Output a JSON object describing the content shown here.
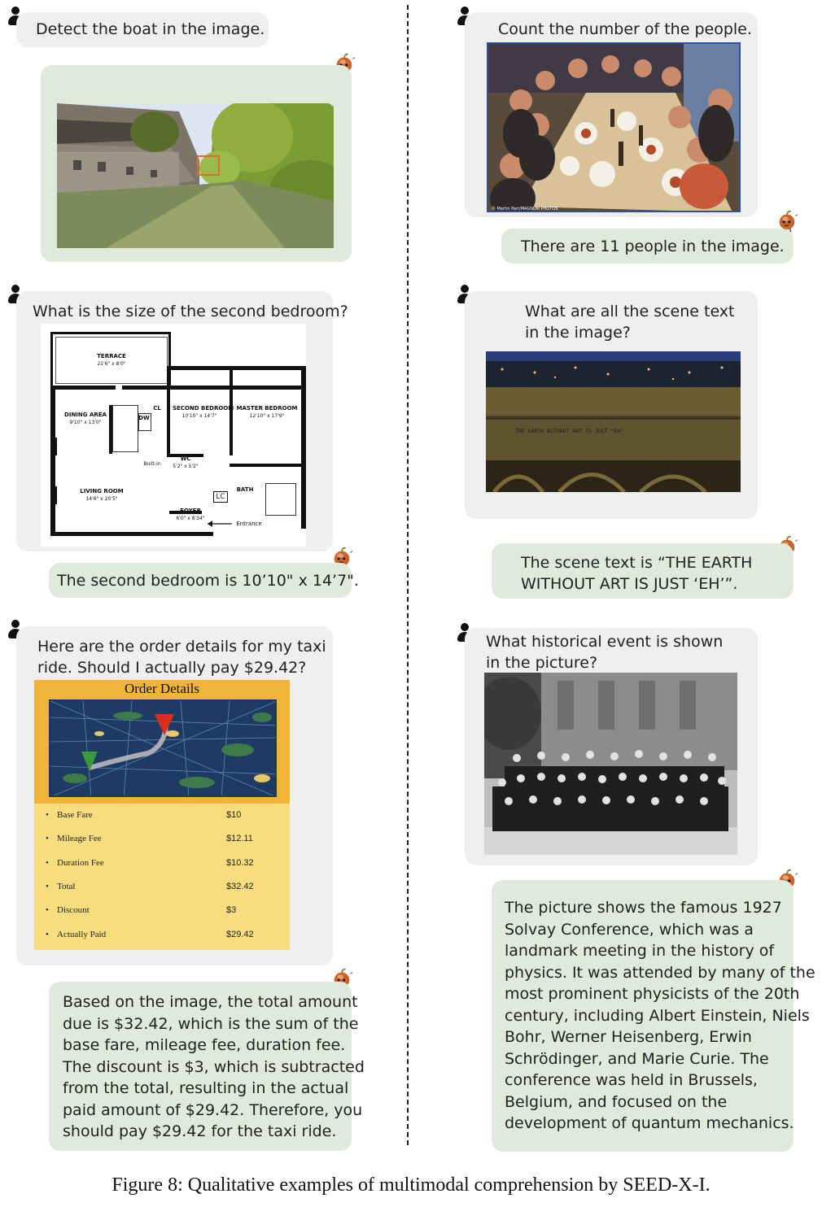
{
  "panels": {
    "boat": {
      "question": "Detect the boat in the image."
    },
    "count": {
      "question": "Count the number of the people.",
      "answer": "There are 11 people in the image.",
      "credit": "© Martin Parr/MAGNUM PHOTOS"
    },
    "bedroom": {
      "question": "What is the size of the second bedroom?",
      "answer": "The second bedroom is 10’10\" x 14’7\"."
    },
    "scene": {
      "question_lines": [
        "What are all the scene text",
        "in the image?"
      ],
      "answer_lines": [
        "The scene text is “THE EARTH",
        "WITHOUT ART IS JUST ‘EH’”."
      ],
      "sign_text": "THE EARTH   WITHOUT   ART   IS   JUST   \"EH\""
    },
    "taxi": {
      "question_lines": [
        "Here are the order details for my taxi",
        "ride. Should I actually pay $29.42?"
      ],
      "answer_lines": [
        "Based on the image, the total amount",
        "due is $32.42, which is the sum of the",
        "base fare, mileage fee, duration fee.",
        "The discount is $3, which is subtracted",
        "from the total, resulting in the actual",
        "paid amount of $29.42. Therefore, you",
        "should pay $29.42 for the taxi ride."
      ]
    },
    "history": {
      "question_lines": [
        "What historical event is shown",
        "in the picture?"
      ],
      "answer_lines": [
        "The picture shows the famous 1927",
        "Solvay Conference, which was a",
        "landmark meeting in the history of",
        "physics. It was attended by many of the",
        "most prominent physicists of the 20th",
        "century, including Albert Einstein, Niels",
        "Bohr, Werner Heisenberg, Erwin",
        "Schrödinger, and Marie Curie. The",
        "conference was held in Brussels,",
        "Belgium, and focused on the",
        "development of quantum mechanics."
      ]
    }
  },
  "floorplan": {
    "terrace": "TERRACE",
    "terrace_dim": "21'6\" x 8'0\"",
    "second_bedroom": "SECOND BEDROOM",
    "second_bedroom_dim": "10'10\" x 14'7\"",
    "master_bedroom": "MASTER BEDROOM",
    "master_bedroom_dim": "12'10\" x 17'9\"",
    "dining": "DINING AREA",
    "dining_dim": "9'10\" x 13'0\"",
    "living": "LIVING ROOM",
    "living_dim": "14'6\" x 20'5\"",
    "wc": "WC",
    "wc_dim": "5'2\" x 5'2\"",
    "bath": "BATH",
    "foyer": "FOYER",
    "foyer_dim": "6'0\" x 8'34\"",
    "entrance": "Entrance",
    "builtin": "Built-in",
    "lc": "LC",
    "dw": "DW",
    "cl": "CL",
    "kitchen": "KITCHEN"
  },
  "order": {
    "title": "Order Details",
    "items": [
      {
        "label": "Base Fare",
        "value": "$10"
      },
      {
        "label": "Mileage Fee",
        "value": "$12.11"
      },
      {
        "label": "Duration Fee",
        "value": "$10.32"
      },
      {
        "label": "Total",
        "value": "$32.42"
      },
      {
        "label": "Discount",
        "value": "$3"
      },
      {
        "label": "Actually Paid",
        "value": "$29.42"
      }
    ]
  },
  "caption": "Figure 8: Qualitative examples of multimodal comprehension by SEED-X-I.",
  "colors": {
    "question_bg": "#efefef",
    "answer_bg": "#dfeadb",
    "order_panel": "#f7dd7d",
    "map_border": "#f0b43a"
  }
}
